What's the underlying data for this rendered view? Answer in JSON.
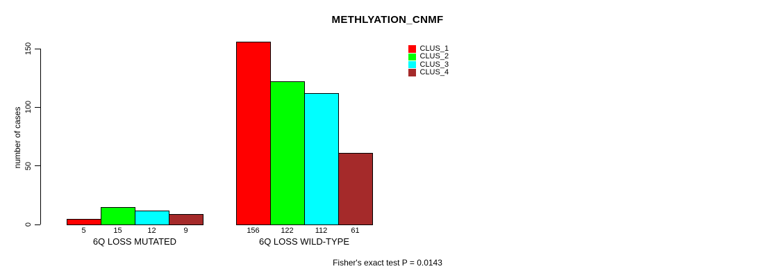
{
  "chart_data": {
    "type": "bar",
    "title": "METHLYATION_CNMF",
    "ylabel": "number of cases",
    "xlabel": "",
    "ylim": [
      0,
      150
    ],
    "yticks": [
      0,
      50,
      100,
      150
    ],
    "grid": false,
    "legend_position": "top-right",
    "categories": [
      "6Q LOSS MUTATED",
      "6Q LOSS WILD-TYPE"
    ],
    "series": [
      {
        "name": "CLUS_1",
        "color": "#ff0000",
        "values": [
          5,
          156
        ]
      },
      {
        "name": "CLUS_2",
        "color": "#00ff00",
        "values": [
          15,
          122
        ]
      },
      {
        "name": "CLUS_3",
        "color": "#00ffff",
        "values": [
          12,
          112
        ]
      },
      {
        "name": "CLUS_4",
        "color": "#a52a2a",
        "values": [
          9,
          61
        ]
      }
    ],
    "bar_value_labels": true,
    "annotation": "Fisher's exact test P = 0.0143"
  }
}
